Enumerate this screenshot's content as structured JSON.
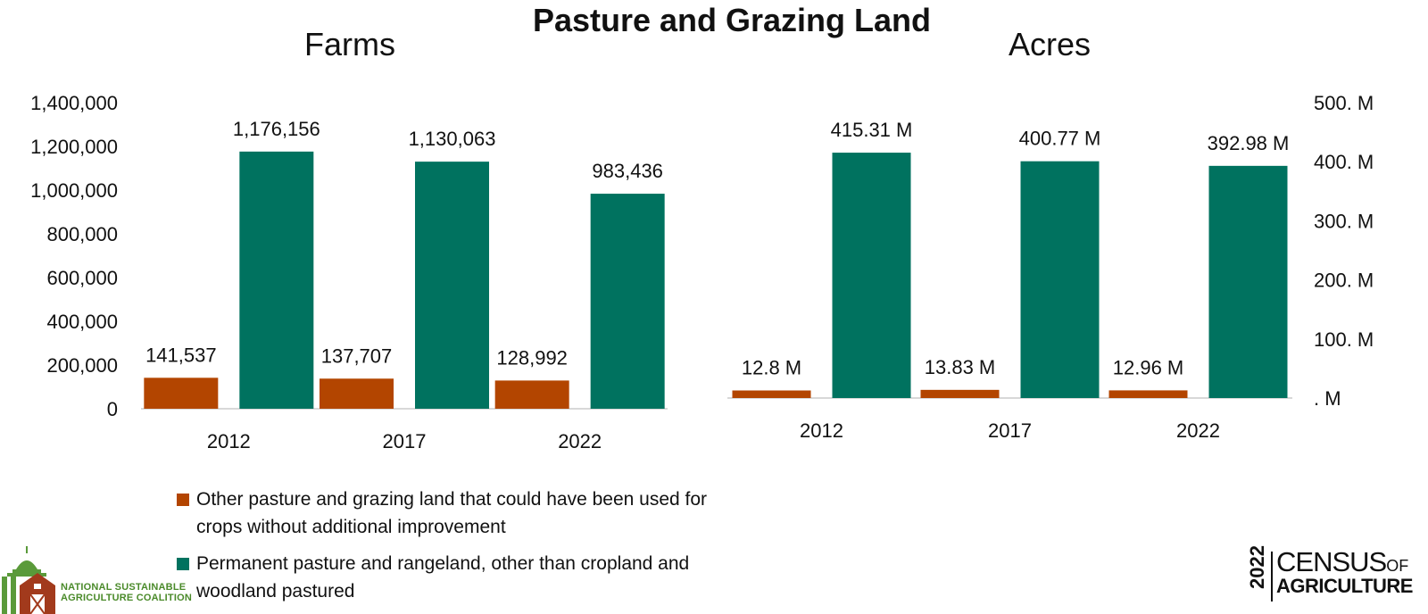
{
  "title": "Pasture and Grazing Land",
  "colors": {
    "other_pasture": "#b34500",
    "permanent_pasture": "#00725f",
    "axis": "#cccccc"
  },
  "legend": {
    "items": [
      {
        "label": "Other pasture and grazing land that could have been used for crops without additional improvement",
        "color": "#b34500"
      },
      {
        "label": "Permanent pasture and rangeland, other than cropland and woodland pastured",
        "color": "#00725f"
      }
    ]
  },
  "logos": {
    "nsac": {
      "line1": "NATIONAL SUSTAINABLE",
      "line2": "AGRICULTURE COALITION"
    },
    "census": {
      "year": "2022",
      "word": "CENSUS",
      "of": "OF",
      "agri": "AGRICULTURE"
    }
  },
  "chart_data": [
    {
      "type": "bar",
      "title": "Farms",
      "categories": [
        "2012",
        "2017",
        "2022"
      ],
      "series": [
        {
          "values": [
            141537,
            137707,
            128992
          ],
          "labels": [
            "141,537",
            "137,707",
            "128,992"
          ]
        },
        {
          "values": [
            1176156,
            1130063,
            983436
          ],
          "labels": [
            "1,176,156",
            "1,130,063",
            "983,436"
          ]
        }
      ],
      "ylim": [
        0,
        1400000
      ],
      "yticks": [
        0,
        200000,
        400000,
        600000,
        800000,
        1000000,
        1200000,
        1400000
      ],
      "ytick_labels": [
        "0",
        "200,000",
        "400,000",
        "600,000",
        "800,000",
        "1,000,000",
        "1,200,000",
        "1,400,000"
      ],
      "yaxis_side": "left",
      "grid": false
    },
    {
      "type": "bar",
      "title": "Acres",
      "categories": [
        "2012",
        "2017",
        "2022"
      ],
      "series": [
        {
          "values": [
            12.8,
            13.83,
            12.96
          ],
          "labels": [
            "12.8 M",
            "13.83 M",
            "12.96 M"
          ]
        },
        {
          "values": [
            415.31,
            400.77,
            392.98
          ],
          "labels": [
            "415.31 M",
            "400.77 M",
            "392.98 M"
          ]
        }
      ],
      "ylim": [
        0,
        500
      ],
      "yticks": [
        0,
        100,
        200,
        300,
        400,
        500
      ],
      "ytick_labels": [
        ". M",
        "100. M",
        "200. M",
        "300. M",
        "400. M",
        "500. M"
      ],
      "yaxis_side": "right",
      "grid": false
    }
  ]
}
